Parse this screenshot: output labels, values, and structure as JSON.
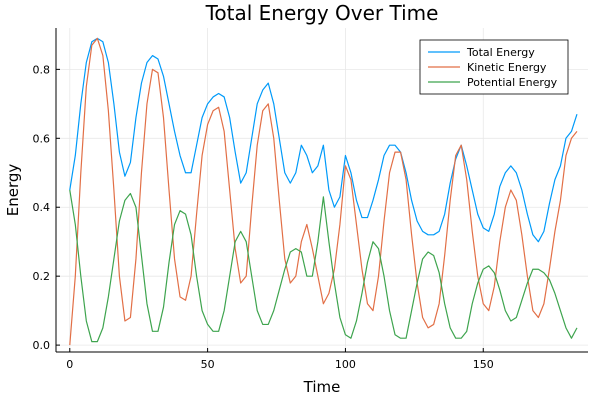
{
  "chart_data": {
    "type": "line",
    "title": "Total Energy Over Time",
    "xlabel": "Time",
    "ylabel": "Energy",
    "xlim": [
      -5,
      188
    ],
    "ylim": [
      -0.02,
      0.92
    ],
    "x_ticks": [
      0,
      50,
      100,
      150
    ],
    "x_tick_labels": [
      "0",
      "50",
      "100",
      "150"
    ],
    "y_ticks": [
      0.0,
      0.2,
      0.4,
      0.6,
      0.8
    ],
    "y_tick_labels": [
      "0.0",
      "0.2",
      "0.4",
      "0.6",
      "0.8"
    ],
    "grid": true,
    "legend_position": "top-right",
    "x": [
      0,
      2,
      4,
      6,
      8,
      10,
      12,
      14,
      16,
      18,
      20,
      22,
      24,
      26,
      28,
      30,
      32,
      34,
      36,
      38,
      40,
      42,
      44,
      46,
      48,
      50,
      52,
      54,
      56,
      58,
      60,
      62,
      64,
      66,
      68,
      70,
      72,
      74,
      76,
      78,
      80,
      82,
      84,
      86,
      88,
      90,
      92,
      94,
      96,
      98,
      100,
      102,
      104,
      106,
      108,
      110,
      112,
      114,
      116,
      118,
      120,
      122,
      124,
      126,
      128,
      130,
      132,
      134,
      136,
      138,
      140,
      142,
      144,
      146,
      148,
      150,
      152,
      154,
      156,
      158,
      160,
      162,
      164,
      166,
      168,
      170,
      172,
      174,
      176,
      178,
      180,
      182,
      184
    ],
    "series": [
      {
        "name": "Total Energy",
        "color": "#009af9",
        "values": [
          0.45,
          0.55,
          0.7,
          0.82,
          0.88,
          0.89,
          0.88,
          0.82,
          0.7,
          0.56,
          0.49,
          0.53,
          0.66,
          0.76,
          0.82,
          0.84,
          0.83,
          0.78,
          0.7,
          0.62,
          0.55,
          0.5,
          0.5,
          0.58,
          0.66,
          0.7,
          0.72,
          0.73,
          0.72,
          0.66,
          0.56,
          0.47,
          0.5,
          0.6,
          0.7,
          0.74,
          0.76,
          0.7,
          0.6,
          0.5,
          0.47,
          0.5,
          0.58,
          0.55,
          0.5,
          0.52,
          0.58,
          0.45,
          0.4,
          0.43,
          0.55,
          0.5,
          0.42,
          0.37,
          0.37,
          0.42,
          0.48,
          0.55,
          0.58,
          0.58,
          0.56,
          0.5,
          0.42,
          0.36,
          0.33,
          0.32,
          0.32,
          0.33,
          0.38,
          0.47,
          0.54,
          0.58,
          0.52,
          0.45,
          0.38,
          0.34,
          0.33,
          0.38,
          0.46,
          0.5,
          0.52,
          0.5,
          0.45,
          0.38,
          0.32,
          0.3,
          0.33,
          0.41,
          0.48,
          0.52,
          0.6,
          0.62,
          0.67
        ]
      },
      {
        "name": "Kinetic Energy",
        "color": "#e26f46",
        "values": [
          0.0,
          0.2,
          0.5,
          0.75,
          0.87,
          0.89,
          0.84,
          0.68,
          0.45,
          0.2,
          0.07,
          0.08,
          0.25,
          0.5,
          0.7,
          0.8,
          0.79,
          0.66,
          0.45,
          0.25,
          0.14,
          0.13,
          0.2,
          0.38,
          0.55,
          0.64,
          0.68,
          0.69,
          0.62,
          0.45,
          0.28,
          0.18,
          0.2,
          0.4,
          0.58,
          0.68,
          0.7,
          0.6,
          0.42,
          0.25,
          0.18,
          0.2,
          0.3,
          0.35,
          0.28,
          0.2,
          0.12,
          0.15,
          0.22,
          0.35,
          0.52,
          0.48,
          0.35,
          0.22,
          0.12,
          0.1,
          0.2,
          0.36,
          0.5,
          0.56,
          0.56,
          0.48,
          0.32,
          0.18,
          0.08,
          0.05,
          0.06,
          0.12,
          0.26,
          0.42,
          0.55,
          0.58,
          0.48,
          0.33,
          0.2,
          0.12,
          0.1,
          0.17,
          0.3,
          0.4,
          0.45,
          0.42,
          0.32,
          0.2,
          0.1,
          0.08,
          0.12,
          0.22,
          0.33,
          0.42,
          0.55,
          0.6,
          0.62
        ]
      },
      {
        "name": "Potential Energy",
        "color": "#3ea44e",
        "values": [
          0.45,
          0.35,
          0.2,
          0.07,
          0.01,
          0.01,
          0.05,
          0.14,
          0.25,
          0.36,
          0.42,
          0.44,
          0.4,
          0.26,
          0.12,
          0.04,
          0.04,
          0.11,
          0.24,
          0.35,
          0.39,
          0.38,
          0.32,
          0.2,
          0.1,
          0.06,
          0.04,
          0.04,
          0.1,
          0.2,
          0.3,
          0.33,
          0.3,
          0.2,
          0.1,
          0.06,
          0.06,
          0.1,
          0.16,
          0.22,
          0.27,
          0.28,
          0.27,
          0.2,
          0.2,
          0.3,
          0.43,
          0.3,
          0.18,
          0.08,
          0.03,
          0.02,
          0.07,
          0.15,
          0.24,
          0.3,
          0.28,
          0.2,
          0.1,
          0.03,
          0.02,
          0.02,
          0.1,
          0.18,
          0.25,
          0.27,
          0.26,
          0.21,
          0.12,
          0.05,
          0.02,
          0.02,
          0.04,
          0.12,
          0.18,
          0.22,
          0.23,
          0.21,
          0.16,
          0.1,
          0.07,
          0.08,
          0.13,
          0.18,
          0.22,
          0.22,
          0.21,
          0.19,
          0.15,
          0.1,
          0.05,
          0.02,
          0.05
        ]
      }
    ]
  }
}
